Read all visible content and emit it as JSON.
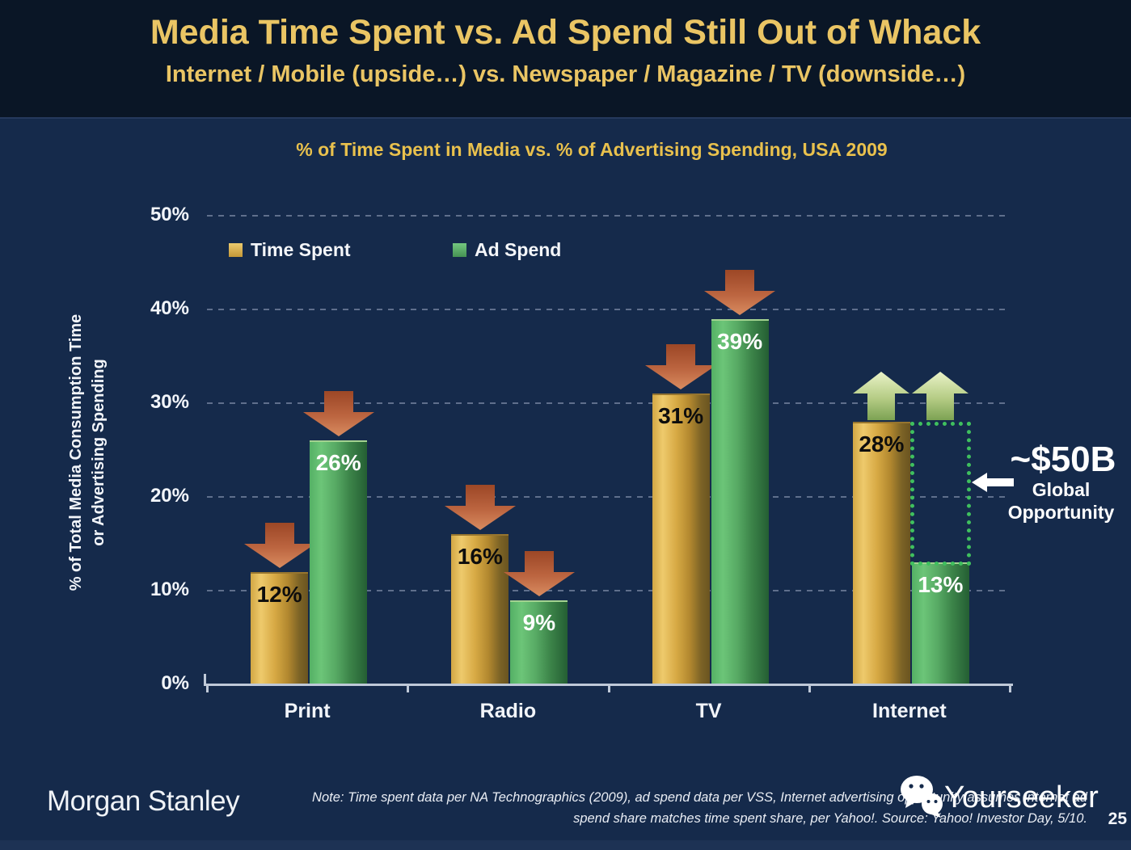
{
  "slide": {
    "title": "Media Time Spent vs. Ad Spend Still Out of Whack",
    "subtitle": "Internet / Mobile (upside…) vs. Newspaper / Magazine / TV (downside…)"
  },
  "chart_data": {
    "type": "bar",
    "title": "% of Time Spent in Media vs. % of Advertising Spending, USA 2009",
    "ylabel_line1": "% of Total Media Consumption Time",
    "ylabel_line2": "or Advertising Spending",
    "categories": [
      "Print",
      "Radio",
      "TV",
      "Internet"
    ],
    "series": [
      {
        "name": "Time Spent",
        "color": "gold",
        "values": [
          12,
          16,
          31,
          28
        ],
        "value_labels": [
          "12%",
          "16%",
          "31%",
          "28%"
        ],
        "markers": [
          "down",
          "down",
          "down",
          "up"
        ]
      },
      {
        "name": "Ad Spend",
        "color": "green",
        "values": [
          26,
          9,
          39,
          13
        ],
        "value_labels": [
          "26%",
          "9%",
          "39%",
          "13%"
        ],
        "markers": [
          "down",
          "down",
          "down",
          "up"
        ]
      }
    ],
    "ylim": [
      0,
      50
    ],
    "y_tick_values": [
      0,
      10,
      20,
      30,
      40,
      50
    ],
    "y_tick_labels": [
      "0%",
      "10%",
      "20%",
      "30%",
      "40%",
      "50%"
    ],
    "grid": "horizontal-dashed",
    "legend_position": "top-left-inside",
    "annotation": {
      "headline": "~$50B",
      "line1": "Global",
      "line2": "Opportunity",
      "target_category": "Internet",
      "target_series": "Ad Spend"
    }
  },
  "footer": {
    "brand": "Morgan Stanley",
    "note_line1": "Note: Time spent data per NA Technographics (2009), ad spend data per VSS, Internet advertising opportunity assumes internet ad",
    "note_line2": "spend share matches time spent share, per Yahoo!. Source: Yahoo! Investor Day, 5/10.",
    "watermark": "Yourseeker",
    "page_number": "25"
  },
  "colors": {
    "background": "#152a4b",
    "header_background": "#0a1626",
    "title_gold": "#eac564",
    "bar_gold": "#d9ab45",
    "bar_green": "#4f9f58",
    "down_arrow": "#b85c38",
    "up_arrow": "#c2d98e",
    "opportunity_dotted": "#3fc05e"
  }
}
